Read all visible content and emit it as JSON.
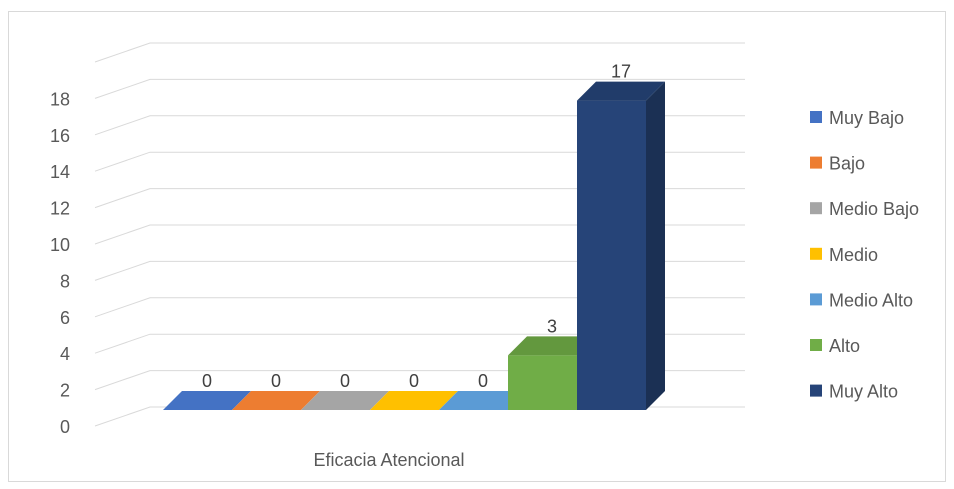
{
  "chart_data": {
    "type": "bar",
    "category": "Eficacia Atencional",
    "series": [
      {
        "name": "Muy Bajo",
        "value": 0,
        "color": "#4472C4"
      },
      {
        "name": "Bajo",
        "value": 0,
        "color": "#ED7D31"
      },
      {
        "name": "Medio Bajo",
        "value": 0,
        "color": "#A5A5A5"
      },
      {
        "name": "Medio",
        "value": 0,
        "color": "#FFC000"
      },
      {
        "name": "Medio Alto",
        "value": 0,
        "color": "#5B9BD5"
      },
      {
        "name": "Alto",
        "value": 3,
        "color": "#70AD47"
      },
      {
        "name": "Muy Alto",
        "value": 17,
        "color": "#264478"
      }
    ],
    "y_ticks": [
      "0",
      "2",
      "4",
      "6",
      "8",
      "10",
      "12",
      "14",
      "16",
      "18"
    ],
    "ylim": [
      0,
      20
    ],
    "grid": true,
    "legend_position": "right",
    "style": "3d-column"
  }
}
